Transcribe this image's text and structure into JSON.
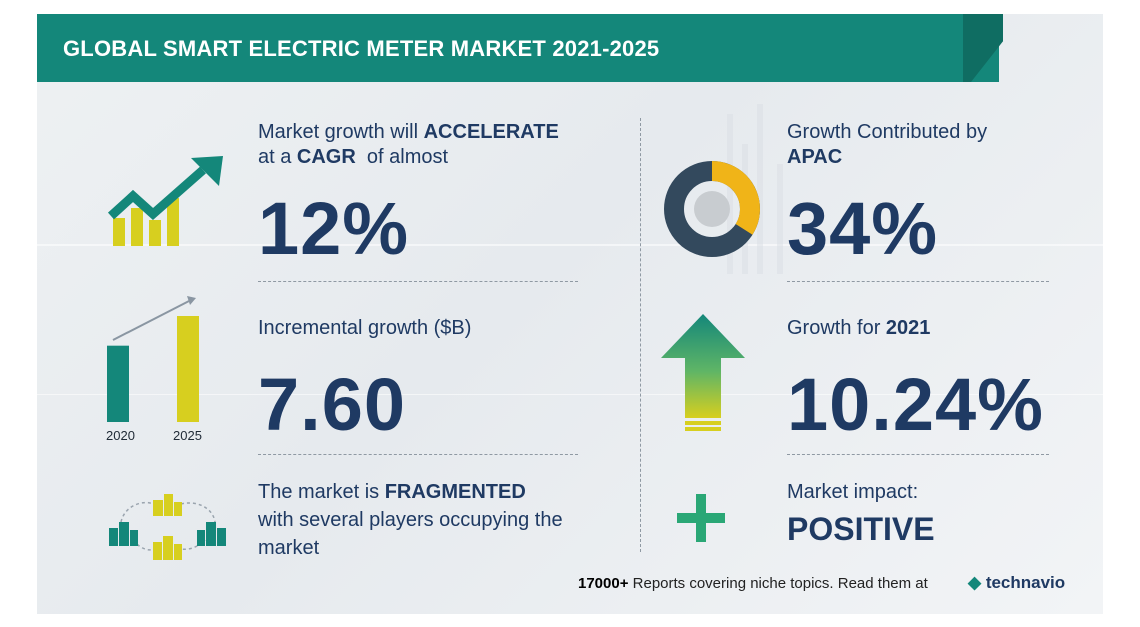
{
  "title": "GLOBAL SMART ELECTRIC METER MARKET 2021-2025",
  "growth": {
    "line1_prefix": "Market growth will ",
    "line1_bold": "ACCELERATE",
    "line2_prefix": "at a ",
    "line2_bold": "CAGR",
    "line2_suffix": "  of almost",
    "value": "12%"
  },
  "incremental": {
    "label": "Incremental growth ($B)",
    "value": "7.60",
    "years": [
      "2020",
      "2025"
    ],
    "relative_bars": [
      0.72,
      1.0
    ]
  },
  "fragmented": {
    "line1_prefix": "The market is ",
    "line1_bold": "FRAGMENTED",
    "line2": "with several players occupying the",
    "line3": "market"
  },
  "apac": {
    "label": "Growth Contributed by",
    "region": "APAC",
    "value": "34%",
    "share": 0.34
  },
  "growth_2021": {
    "label_prefix": "Growth for ",
    "label_year": "2021",
    "value": "10.24%"
  },
  "impact": {
    "label": "Market impact:",
    "value": "POSITIVE"
  },
  "footer": {
    "count": "17000+",
    "text": " Reports covering niche topics. Read them at",
    "brand": "technavio"
  },
  "colors": {
    "teal": "#14877a",
    "dark_teal": "#0f6d62",
    "navy": "#1f3a63",
    "yellow": "#d7cf1f",
    "amber": "#f0b418",
    "green": "#2aa776",
    "slate": "#33495d"
  }
}
